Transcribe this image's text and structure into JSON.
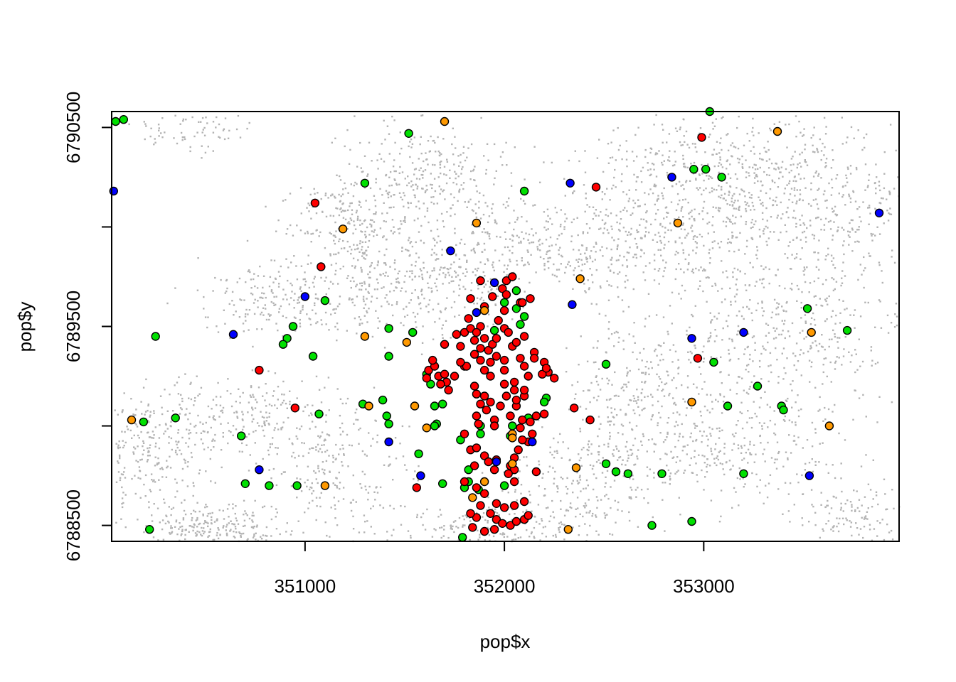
{
  "chart_data": {
    "type": "scatter",
    "xlabel": "pop$x",
    "ylabel": "pop$y",
    "xlim": [
      350030,
      353980
    ],
    "ylim": [
      6788420,
      6790580
    ],
    "x_ticks": [
      351000,
      352000,
      353000
    ],
    "x_tick_labels": [
      "351000",
      "352000",
      "353000"
    ],
    "y_ticks": [
      6788500,
      6789000,
      6789500,
      6790000,
      6790500
    ],
    "y_tick_labels": [
      "6788500",
      "",
      "6789500",
      "",
      "6790500"
    ],
    "grid": false,
    "legend": "none",
    "background_population": {
      "color": "#b3b3b3",
      "clusters": [
        {
          "cx": 350550,
          "cy": 6788480,
          "sx": 180,
          "sy": 60,
          "n": 260
        },
        {
          "cx": 350200,
          "cy": 6788870,
          "sx": 150,
          "sy": 150,
          "n": 260
        },
        {
          "cx": 350700,
          "cy": 6789050,
          "sx": 250,
          "sy": 120,
          "n": 220
        },
        {
          "cx": 351150,
          "cy": 6788800,
          "sx": 200,
          "sy": 160,
          "n": 220
        },
        {
          "cx": 350850,
          "cy": 6789650,
          "sx": 200,
          "sy": 100,
          "n": 200
        },
        {
          "cx": 351350,
          "cy": 6789750,
          "sx": 140,
          "sy": 140,
          "n": 200
        },
        {
          "cx": 351600,
          "cy": 6790250,
          "sx": 220,
          "sy": 140,
          "n": 320
        },
        {
          "cx": 351200,
          "cy": 6790050,
          "sx": 150,
          "sy": 100,
          "n": 160
        },
        {
          "cx": 351750,
          "cy": 6789750,
          "sx": 150,
          "sy": 150,
          "n": 200
        },
        {
          "cx": 352250,
          "cy": 6789900,
          "sx": 260,
          "sy": 120,
          "n": 260
        },
        {
          "cx": 352800,
          "cy": 6789950,
          "sx": 260,
          "sy": 140,
          "n": 300
        },
        {
          "cx": 353000,
          "cy": 6790300,
          "sx": 300,
          "sy": 140,
          "n": 380
        },
        {
          "cx": 353600,
          "cy": 6790100,
          "sx": 280,
          "sy": 220,
          "n": 460
        },
        {
          "cx": 353400,
          "cy": 6789450,
          "sx": 280,
          "sy": 180,
          "n": 360
        },
        {
          "cx": 353150,
          "cy": 6788900,
          "sx": 320,
          "sy": 160,
          "n": 360
        },
        {
          "cx": 352650,
          "cy": 6789200,
          "sx": 150,
          "sy": 200,
          "n": 220
        },
        {
          "cx": 352400,
          "cy": 6788750,
          "sx": 200,
          "sy": 150,
          "n": 220
        },
        {
          "cx": 351950,
          "cy": 6788500,
          "sx": 300,
          "sy": 60,
          "n": 200
        },
        {
          "cx": 353750,
          "cy": 6788550,
          "sx": 150,
          "sy": 80,
          "n": 120
        },
        {
          "cx": 350450,
          "cy": 6790500,
          "sx": 150,
          "sy": 60,
          "n": 80
        }
      ]
    },
    "series": [
      {
        "color": "#00e000",
        "points": [
          [
            350050,
            6790530
          ],
          [
            350090,
            6790540
          ],
          [
            351520,
            6790470
          ],
          [
            353030,
            6790580
          ],
          [
            351300,
            6790220
          ],
          [
            353010,
            6790290
          ],
          [
            352950,
            6790290
          ],
          [
            353090,
            6790250
          ],
          [
            352100,
            6790180
          ],
          [
            352060,
            6789680
          ],
          [
            351100,
            6789630
          ],
          [
            353520,
            6789590
          ],
          [
            350940,
            6789500
          ],
          [
            351420,
            6789490
          ],
          [
            350910,
            6789440
          ],
          [
            350890,
            6789410
          ],
          [
            350250,
            6789450
          ],
          [
            353720,
            6789480
          ],
          [
            351040,
            6789350
          ],
          [
            351420,
            6789350
          ],
          [
            351540,
            6789470
          ],
          [
            351610,
            6789260
          ],
          [
            353050,
            6789320
          ],
          [
            352510,
            6789310
          ],
          [
            353270,
            6789200
          ],
          [
            351630,
            6789210
          ],
          [
            352210,
            6789140
          ],
          [
            351290,
            6789110
          ],
          [
            351390,
            6789130
          ],
          [
            351650,
            6789100
          ],
          [
            351690,
            6789110
          ],
          [
            352200,
            6789120
          ],
          [
            353120,
            6789100
          ],
          [
            353390,
            6789100
          ],
          [
            353400,
            6789080
          ],
          [
            350190,
            6789020
          ],
          [
            350350,
            6789040
          ],
          [
            351070,
            6789060
          ],
          [
            351410,
            6789050
          ],
          [
            351420,
            6789010
          ],
          [
            351660,
            6789010
          ],
          [
            351650,
            6789000
          ],
          [
            351880,
            6789000
          ],
          [
            352040,
            6789000
          ],
          [
            352120,
            6789040
          ],
          [
            351780,
            6788930
          ],
          [
            351880,
            6788960
          ],
          [
            352030,
            6788950
          ],
          [
            350680,
            6788950
          ],
          [
            351570,
            6788860
          ],
          [
            352510,
            6788810
          ],
          [
            352560,
            6788770
          ],
          [
            352620,
            6788760
          ],
          [
            352790,
            6788760
          ],
          [
            353200,
            6788760
          ],
          [
            350700,
            6788710
          ],
          [
            350820,
            6788700
          ],
          [
            350960,
            6788700
          ],
          [
            351690,
            6788710
          ],
          [
            351800,
            6788690
          ],
          [
            351820,
            6788720
          ],
          [
            351820,
            6788780
          ],
          [
            351870,
            6788680
          ],
          [
            352000,
            6788700
          ],
          [
            350220,
            6788480
          ],
          [
            352740,
            6788500
          ],
          [
            352940,
            6788520
          ],
          [
            351790,
            6788440
          ],
          [
            352060,
            6789590
          ],
          [
            352080,
            6789510
          ],
          [
            351950,
            6789480
          ],
          [
            352000,
            6789620
          ],
          [
            352100,
            6789550
          ]
        ]
      },
      {
        "color": "#ff0000",
        "points": [
          [
            351050,
            6790120
          ],
          [
            351080,
            6789800
          ],
          [
            352460,
            6790200
          ],
          [
            352990,
            6790450
          ],
          [
            351880,
            6789730
          ],
          [
            352080,
            6789620
          ],
          [
            352040,
            6789400
          ],
          [
            351800,
            6789300
          ],
          [
            351960,
            6789350
          ],
          [
            351880,
            6789330
          ],
          [
            351920,
            6789380
          ],
          [
            352000,
            6789280
          ],
          [
            352100,
            6789300
          ],
          [
            351930,
            6789250
          ],
          [
            351850,
            6789200
          ],
          [
            351860,
            6789160
          ],
          [
            352010,
            6789150
          ],
          [
            352050,
            6789180
          ],
          [
            351980,
            6789100
          ],
          [
            351910,
            6789080
          ],
          [
            351950,
            6789030
          ],
          [
            351870,
            6789010
          ],
          [
            351800,
            6788960
          ],
          [
            351860,
            6789050
          ],
          [
            351950,
            6789000
          ],
          [
            352030,
            6789050
          ],
          [
            352090,
            6789030
          ],
          [
            352160,
            6789050
          ],
          [
            352200,
            6789060
          ],
          [
            352060,
            6789100
          ],
          [
            352130,
            6789020
          ],
          [
            352080,
            6788990
          ],
          [
            351710,
            6789220
          ],
          [
            351720,
            6789180
          ],
          [
            351670,
            6789250
          ],
          [
            351780,
            6789400
          ],
          [
            351810,
            6789300
          ],
          [
            351750,
            6789250
          ],
          [
            352000,
            6789330
          ],
          [
            352120,
            6789250
          ],
          [
            352150,
            6789370
          ],
          [
            352200,
            6789320
          ],
          [
            352250,
            6789240
          ],
          [
            352220,
            6789270
          ],
          [
            351620,
            6789280
          ],
          [
            351610,
            6789240
          ],
          [
            351900,
            6789150
          ],
          [
            351930,
            6789120
          ],
          [
            351880,
            6789110
          ],
          [
            352000,
            6789210
          ],
          [
            352050,
            6789220
          ],
          [
            352100,
            6789150
          ],
          [
            352100,
            6789180
          ],
          [
            351900,
            6789280
          ],
          [
            351930,
            6789320
          ],
          [
            351850,
            6789360
          ],
          [
            351880,
            6789390
          ],
          [
            351850,
            6789430
          ],
          [
            352000,
            6789490
          ],
          [
            351970,
            6789530
          ],
          [
            351880,
            6789500
          ],
          [
            351900,
            6789600
          ],
          [
            352000,
            6789580
          ],
          [
            352100,
            6789450
          ],
          [
            351820,
            6789540
          ],
          [
            351760,
            6789460
          ],
          [
            351800,
            6789470
          ],
          [
            351830,
            6789490
          ],
          [
            351860,
            6789470
          ],
          [
            351900,
            6789440
          ],
          [
            351940,
            6789410
          ],
          [
            351960,
            6789440
          ],
          [
            352020,
            6789470
          ],
          [
            352060,
            6789420
          ],
          [
            351650,
            6789300
          ],
          [
            351700,
            6789260
          ],
          [
            352120,
            6788920
          ],
          [
            352140,
            6788960
          ],
          [
            352090,
            6788930
          ],
          [
            352070,
            6788880
          ],
          [
            352050,
            6788840
          ],
          [
            351830,
            6788880
          ],
          [
            351860,
            6788890
          ],
          [
            351900,
            6788850
          ],
          [
            351920,
            6788820
          ],
          [
            351850,
            6788800
          ],
          [
            351950,
            6788780
          ],
          [
            352030,
            6788800
          ],
          [
            352050,
            6788780
          ],
          [
            352050,
            6788720
          ],
          [
            351800,
            6788720
          ],
          [
            351860,
            6788690
          ],
          [
            351900,
            6788660
          ],
          [
            351960,
            6788610
          ],
          [
            352000,
            6788590
          ],
          [
            352050,
            6788600
          ],
          [
            352100,
            6788620
          ],
          [
            351930,
            6788560
          ],
          [
            351960,
            6788530
          ],
          [
            351990,
            6788510
          ],
          [
            352030,
            6788500
          ],
          [
            352060,
            6788520
          ],
          [
            352100,
            6788530
          ],
          [
            352120,
            6788550
          ],
          [
            351860,
            6788540
          ],
          [
            351830,
            6788560
          ],
          [
            351880,
            6788600
          ],
          [
            351950,
            6788480
          ],
          [
            351900,
            6788470
          ],
          [
            351840,
            6788490
          ],
          [
            352160,
            6788770
          ],
          [
            352020,
            6788760
          ],
          [
            351960,
            6788830
          ],
          [
            351780,
            6789320
          ],
          [
            352080,
            6789340
          ],
          [
            351640,
            6789330
          ],
          [
            351680,
            6789210
          ],
          [
            352060,
            6789130
          ],
          [
            351560,
            6788690
          ],
          [
            350770,
            6789280
          ],
          [
            350950,
            6789090
          ],
          [
            352350,
            6789090
          ],
          [
            352430,
            6789030
          ],
          [
            352970,
            6789340
          ],
          [
            352010,
            6789730
          ],
          [
            352040,
            6789750
          ],
          [
            351990,
            6789690
          ],
          [
            351940,
            6789650
          ],
          [
            351830,
            6789640
          ],
          [
            352090,
            6789620
          ],
          [
            352130,
            6789640
          ],
          [
            352010,
            6789660
          ],
          [
            351700,
            6789410
          ],
          [
            352190,
            6789260
          ],
          [
            352210,
            6789290
          ],
          [
            352150,
            6789340
          ]
        ]
      },
      {
        "color": "#0000ff",
        "points": [
          [
            350040,
            6790180
          ],
          [
            352330,
            6790220
          ],
          [
            352840,
            6790250
          ],
          [
            353880,
            6790070
          ],
          [
            351730,
            6789880
          ],
          [
            351950,
            6789720
          ],
          [
            351000,
            6789650
          ],
          [
            352340,
            6789610
          ],
          [
            351860,
            6789570
          ],
          [
            350640,
            6789460
          ],
          [
            353200,
            6789470
          ],
          [
            352940,
            6789440
          ],
          [
            351420,
            6788920
          ],
          [
            352140,
            6788920
          ],
          [
            350770,
            6788780
          ],
          [
            351960,
            6788820
          ],
          [
            351580,
            6788750
          ],
          [
            353530,
            6788750
          ]
        ]
      },
      {
        "color": "#ff9900",
        "points": [
          [
            351700,
            6790530
          ],
          [
            353370,
            6790480
          ],
          [
            351860,
            6790020
          ],
          [
            352870,
            6790020
          ],
          [
            351190,
            6789990
          ],
          [
            352380,
            6789740
          ],
          [
            351900,
            6789580
          ],
          [
            353540,
            6789470
          ],
          [
            351510,
            6789420
          ],
          [
            351300,
            6789450
          ],
          [
            351550,
            6789100
          ],
          [
            351320,
            6789100
          ],
          [
            352940,
            6789120
          ],
          [
            350130,
            6789030
          ],
          [
            351610,
            6788990
          ],
          [
            352040,
            6788960
          ],
          [
            352040,
            6788940
          ],
          [
            353630,
            6789000
          ],
          [
            352360,
            6788790
          ],
          [
            352040,
            6788810
          ],
          [
            351100,
            6788700
          ],
          [
            351900,
            6788720
          ],
          [
            352320,
            6788480
          ],
          [
            351840,
            6788640
          ]
        ]
      }
    ]
  }
}
